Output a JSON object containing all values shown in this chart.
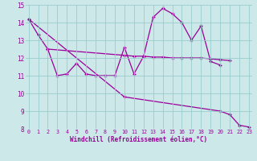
{
  "background_color": "#cce8e8",
  "grid_color": "#99cccc",
  "line_color": "#990099",
  "ylim": [
    8,
    15
  ],
  "xlim": [
    0,
    23
  ],
  "yticks": [
    8,
    9,
    10,
    11,
    12,
    13,
    14,
    15
  ],
  "xticks": [
    0,
    1,
    2,
    3,
    4,
    5,
    6,
    7,
    8,
    9,
    10,
    11,
    12,
    13,
    14,
    15,
    16,
    17,
    18,
    19,
    20,
    21,
    22,
    23
  ],
  "xlabel": "Windchill (Refroidissement éolien,°C)",
  "y1_x": [
    0,
    1,
    2,
    3,
    4,
    5,
    6,
    7,
    8,
    9,
    10,
    11,
    12,
    13,
    14,
    15,
    16,
    17,
    18,
    19,
    20
  ],
  "y1_y": [
    14.2,
    13.3,
    12.5,
    11.0,
    11.1,
    11.7,
    11.1,
    11.0,
    11.0,
    11.0,
    12.6,
    11.1,
    12.1,
    14.3,
    14.8,
    14.5,
    14.0,
    13.0,
    13.8,
    11.8,
    11.6
  ],
  "y2_x": [
    2,
    10,
    11,
    12,
    13,
    14,
    15,
    16,
    17,
    18,
    19,
    20,
    21
  ],
  "y2_y": [
    12.5,
    12.15,
    12.1,
    12.1,
    12.05,
    12.05,
    12.0,
    12.0,
    12.0,
    12.0,
    11.95,
    11.9,
    11.85
  ],
  "y3_x": [
    0,
    10,
    20,
    21,
    22,
    23
  ],
  "y3_y": [
    14.2,
    9.8,
    9.0,
    8.8,
    8.2,
    8.1
  ]
}
